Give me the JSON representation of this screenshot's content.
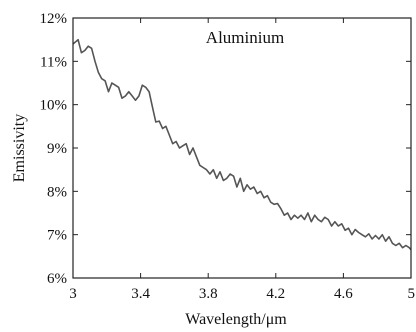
{
  "chart_data": {
    "type": "line",
    "title": "",
    "annotation": "Aluminium",
    "xlabel": "Wavelength/μm",
    "ylabel": "Emissivity",
    "xlim": [
      3,
      5
    ],
    "ylim": [
      6,
      12
    ],
    "x_ticks": [
      3,
      3.4,
      3.8,
      4.2,
      4.6,
      5
    ],
    "x_tick_labels": [
      "3",
      "3.4",
      "3.8",
      "4.2",
      "4.6",
      "5"
    ],
    "y_ticks": [
      6,
      7,
      8,
      9,
      10,
      11,
      12
    ],
    "y_tick_labels": [
      "6%",
      "7%",
      "8%",
      "9%",
      "10%",
      "11%",
      "12%"
    ],
    "grid": false,
    "line_color": "#555555",
    "series": [
      {
        "name": "",
        "x": [
          3.0,
          3.03,
          3.05,
          3.07,
          3.09,
          3.11,
          3.13,
          3.15,
          3.17,
          3.19,
          3.21,
          3.23,
          3.25,
          3.27,
          3.29,
          3.31,
          3.33,
          3.35,
          3.37,
          3.39,
          3.41,
          3.43,
          3.45,
          3.47,
          3.49,
          3.51,
          3.53,
          3.55,
          3.57,
          3.59,
          3.61,
          3.63,
          3.65,
          3.67,
          3.69,
          3.71,
          3.73,
          3.75,
          3.77,
          3.79,
          3.81,
          3.83,
          3.85,
          3.87,
          3.89,
          3.91,
          3.93,
          3.95,
          3.97,
          3.99,
          4.01,
          4.03,
          4.05,
          4.07,
          4.09,
          4.11,
          4.13,
          4.15,
          4.17,
          4.19,
          4.21,
          4.23,
          4.25,
          4.27,
          4.29,
          4.31,
          4.33,
          4.35,
          4.37,
          4.39,
          4.41,
          4.43,
          4.45,
          4.47,
          4.49,
          4.51,
          4.53,
          4.55,
          4.57,
          4.59,
          4.61,
          4.63,
          4.65,
          4.67,
          4.69,
          4.71,
          4.73,
          4.75,
          4.77,
          4.79,
          4.81,
          4.83,
          4.85,
          4.87,
          4.89,
          4.91,
          4.93,
          4.95,
          4.97,
          4.99,
          5.0
        ],
        "y": [
          11.4,
          11.5,
          11.2,
          11.25,
          11.35,
          11.3,
          11.0,
          10.75,
          10.6,
          10.55,
          10.3,
          10.5,
          10.45,
          10.4,
          10.15,
          10.2,
          10.3,
          10.2,
          10.1,
          10.2,
          10.45,
          10.4,
          10.3,
          9.95,
          9.6,
          9.62,
          9.45,
          9.5,
          9.3,
          9.1,
          9.15,
          9.0,
          9.05,
          9.1,
          8.85,
          9.0,
          8.8,
          8.6,
          8.55,
          8.5,
          8.4,
          8.5,
          8.3,
          8.45,
          8.25,
          8.3,
          8.4,
          8.35,
          8.1,
          8.3,
          8.0,
          8.15,
          8.05,
          8.1,
          7.95,
          8.0,
          7.85,
          7.9,
          7.75,
          7.7,
          7.72,
          7.6,
          7.45,
          7.5,
          7.35,
          7.45,
          7.38,
          7.45,
          7.35,
          7.5,
          7.3,
          7.45,
          7.35,
          7.3,
          7.4,
          7.35,
          7.2,
          7.3,
          7.2,
          7.25,
          7.1,
          7.15,
          7.0,
          7.12,
          7.05,
          7.0,
          6.95,
          7.02,
          6.9,
          6.98,
          6.9,
          7.0,
          6.85,
          6.95,
          6.8,
          6.75,
          6.8,
          6.7,
          6.75,
          6.7,
          6.65
        ]
      }
    ]
  }
}
